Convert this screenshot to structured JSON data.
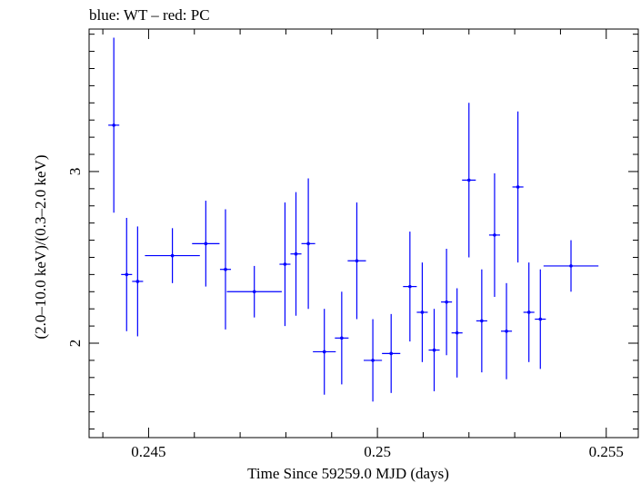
{
  "chart_data": {
    "type": "scatter",
    "title": "blue: WT – red: PC",
    "xlabel": "Time Since 59259.0 MJD (days)",
    "ylabel": "(2.0–10.0 keV)/(0.3–2.0 keV)",
    "xlim": [
      0.2437,
      0.2557
    ],
    "ylim": [
      1.45,
      3.83
    ],
    "xticks": [
      0.245,
      0.25,
      0.255
    ],
    "xtick_labels": [
      "0.245",
      "0.25",
      "0.255"
    ],
    "yticks": [
      2,
      3
    ],
    "ytick_labels": [
      "2",
      "3"
    ],
    "grid": false,
    "series": [
      {
        "color": "#0000ff",
        "points": [
          {
            "x": 0.24424,
            "xerr": 0.00012,
            "y": 3.27,
            "yerr": 0.51
          },
          {
            "x": 0.24452,
            "xerr": 0.00012,
            "y": 2.4,
            "yerr": 0.33
          },
          {
            "x": 0.24476,
            "xerr": 0.00012,
            "y": 2.36,
            "yerr": 0.32
          },
          {
            "x": 0.24552,
            "xerr": 0.0006,
            "y": 2.51,
            "yerr": 0.16
          },
          {
            "x": 0.24625,
            "xerr": 0.0003,
            "y": 2.58,
            "yerr": 0.25
          },
          {
            "x": 0.24668,
            "xerr": 0.00012,
            "y": 2.43,
            "yerr": 0.35
          },
          {
            "x": 0.24731,
            "xerr": 0.0006,
            "y": 2.3,
            "yerr": 0.15
          },
          {
            "x": 0.24798,
            "xerr": 0.00012,
            "y": 2.46,
            "yerr": 0.36
          },
          {
            "x": 0.24822,
            "xerr": 0.00012,
            "y": 2.52,
            "yerr": 0.36
          },
          {
            "x": 0.24849,
            "xerr": 0.00015,
            "y": 2.58,
            "yerr": 0.38
          },
          {
            "x": 0.24884,
            "xerr": 0.00025,
            "y": 1.95,
            "yerr": 0.25
          },
          {
            "x": 0.24922,
            "xerr": 0.00015,
            "y": 2.03,
            "yerr": 0.27
          },
          {
            "x": 0.24955,
            "xerr": 0.0002,
            "y": 2.48,
            "yerr": 0.34
          },
          {
            "x": 0.2499,
            "xerr": 0.0002,
            "y": 1.9,
            "yerr": 0.24
          },
          {
            "x": 0.2503,
            "xerr": 0.0002,
            "y": 1.94,
            "yerr": 0.23
          },
          {
            "x": 0.25071,
            "xerr": 0.00015,
            "y": 2.33,
            "yerr": 0.32
          },
          {
            "x": 0.25098,
            "xerr": 0.00012,
            "y": 2.18,
            "yerr": 0.29
          },
          {
            "x": 0.25124,
            "xerr": 0.00012,
            "y": 1.96,
            "yerr": 0.24
          },
          {
            "x": 0.25151,
            "xerr": 0.00012,
            "y": 2.24,
            "yerr": 0.31
          },
          {
            "x": 0.25174,
            "xerr": 0.00012,
            "y": 2.06,
            "yerr": 0.26
          },
          {
            "x": 0.252,
            "xerr": 0.00015,
            "y": 2.95,
            "yerr": 0.45
          },
          {
            "x": 0.25228,
            "xerr": 0.00012,
            "y": 2.13,
            "yerr": 0.3
          },
          {
            "x": 0.25256,
            "xerr": 0.00012,
            "y": 2.63,
            "yerr": 0.36
          },
          {
            "x": 0.25282,
            "xerr": 0.00012,
            "y": 2.07,
            "yerr": 0.28
          },
          {
            "x": 0.25307,
            "xerr": 0.00012,
            "y": 2.91,
            "yerr": 0.44
          },
          {
            "x": 0.25331,
            "xerr": 0.00012,
            "y": 2.18,
            "yerr": 0.29
          },
          {
            "x": 0.25356,
            "xerr": 0.00012,
            "y": 2.14,
            "yerr": 0.29
          },
          {
            "x": 0.25423,
            "xerr": 0.0006,
            "y": 2.45,
            "yerr": 0.15
          }
        ]
      }
    ]
  }
}
